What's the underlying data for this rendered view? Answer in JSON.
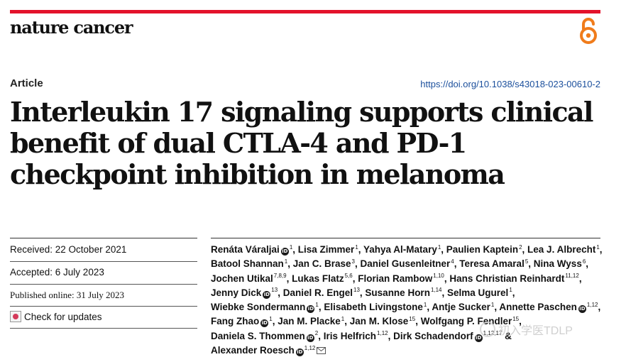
{
  "journal": {
    "name": "nature cancer"
  },
  "article": {
    "type": "Article",
    "doi": "https://doi.org/10.1038/s43018-023-00610-2",
    "title": "Interleukin 17 signaling supports clinical benefit of dual CTLA-4 and PD-1 checkpoint inhibition in melanoma"
  },
  "meta": {
    "received": "Received: 22 October 2021",
    "accepted": "Accepted: 6 July 2023",
    "published": "Published online: 31 July 2023",
    "check_updates": "Check for updates"
  },
  "authors": [
    {
      "name": "Renáta Váraljai",
      "orcid": true,
      "aff": "1"
    },
    {
      "name": "Lisa Zimmer",
      "aff": "1"
    },
    {
      "name": "Yahya Al-Matary",
      "aff": "1"
    },
    {
      "name": "Paulien Kaptein",
      "aff": "2"
    },
    {
      "name": "Lea J. Albrecht",
      "aff": "1"
    },
    {
      "name": "Batool Shannan",
      "aff": "1"
    },
    {
      "name": "Jan C. Brase",
      "aff": "3"
    },
    {
      "name": "Daniel Gusenleitner",
      "aff": "4"
    },
    {
      "name": "Teresa Amaral",
      "aff": "5"
    },
    {
      "name": "Nina Wyss",
      "aff": "6"
    },
    {
      "name": "Jochen Utikal",
      "aff": "7,8,9"
    },
    {
      "name": "Lukas Flatz",
      "aff": "5,6"
    },
    {
      "name": "Florian Rambow",
      "aff": "1,10"
    },
    {
      "name": "Hans Christian Reinhardt",
      "aff": "11,12"
    },
    {
      "name": "Jenny Dick",
      "orcid": true,
      "aff": "13"
    },
    {
      "name": "Daniel R. Engel",
      "aff": "13"
    },
    {
      "name": "Susanne Horn",
      "aff": "1,14"
    },
    {
      "name": "Selma Ugurel",
      "aff": "1"
    },
    {
      "name": "Wiebke Sondermann",
      "orcid": true,
      "aff": "1"
    },
    {
      "name": "Elisabeth Livingstone",
      "aff": "1"
    },
    {
      "name": "Antje Sucker",
      "aff": "1"
    },
    {
      "name": "Annette Paschen",
      "orcid": true,
      "aff": "1,12"
    },
    {
      "name": "Fang Zhao",
      "orcid": true,
      "aff": "1"
    },
    {
      "name": "Jan M. Placke",
      "aff": "1"
    },
    {
      "name": "Jan M. Klose",
      "aff": "15"
    },
    {
      "name": "Wolfgang P. Fendler",
      "aff": "15"
    },
    {
      "name": "Daniela S. Thommen",
      "orcid": true,
      "aff": "2"
    },
    {
      "name": "Iris Helfrich",
      "aff": "1,12"
    },
    {
      "name": "Dirk Schadendorf",
      "orcid": true,
      "aff": "1,12,17"
    },
    {
      "name": "Alexander Roesch",
      "orcid": true,
      "aff": "1,12",
      "corresponding": true
    }
  ],
  "watermark": {
    "text": "初入学医TDLP"
  },
  "colors": {
    "accent_red": "#e3122b",
    "oa_orange": "#f07c1b",
    "link_blue": "#1b4f9c"
  },
  "icons": {
    "open_access": "open-access-lock-icon",
    "orcid": "orcid-icon",
    "email": "email-icon",
    "check_updates": "check-for-updates-icon"
  }
}
